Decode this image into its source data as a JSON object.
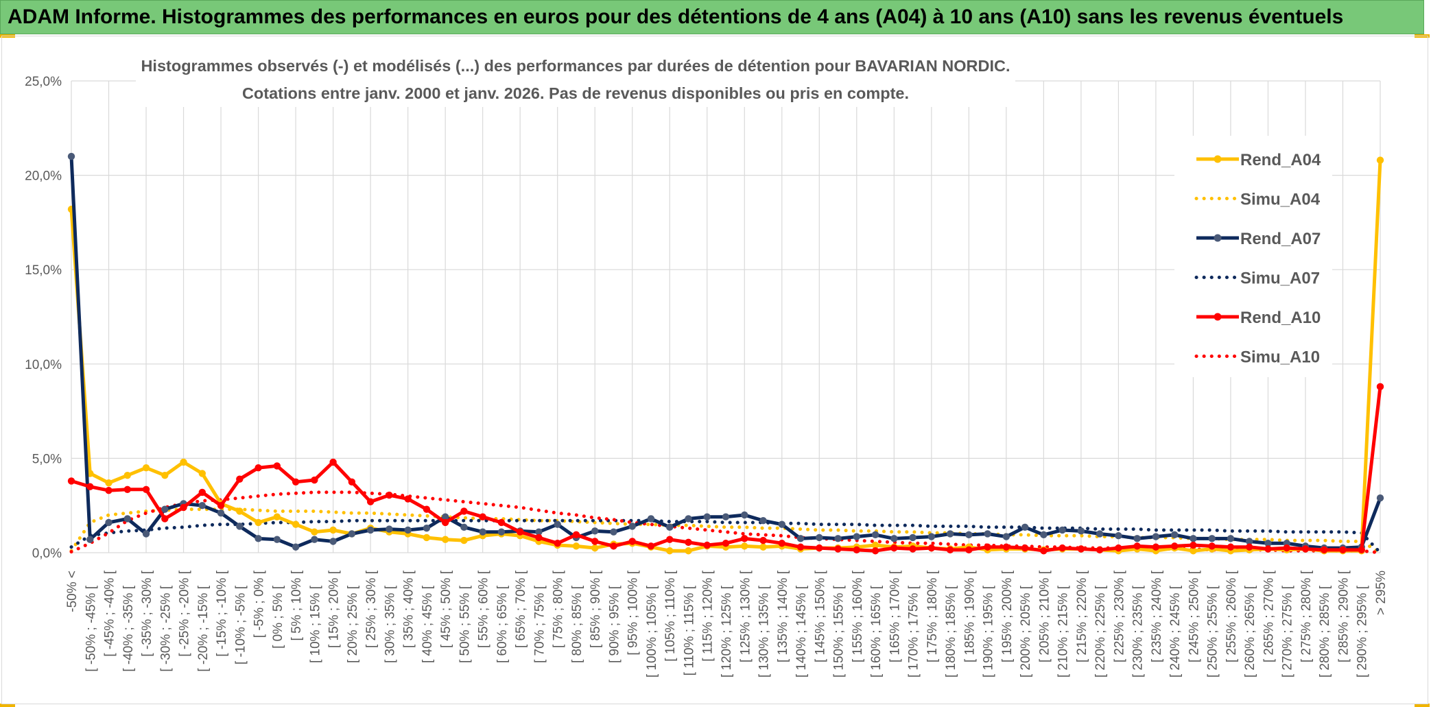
{
  "header": {
    "title": "ADAM Informe. Histogrammes des performances en euros pour des détentions de 4 ans (A04) à 10 ans (A10) sans les revenus éventuels"
  },
  "colors": {
    "banner": "#78c878",
    "yellow": "#ffc000",
    "navy": "#0e2a5c",
    "red": "#ff0000",
    "grid": "#d9d9d9"
  },
  "chart_data": {
    "type": "line",
    "title": "Histogrammes observés (-) et modélisés (...) des performances par durées de détention pour BAVARIAN NORDIC.",
    "subtitle": "Cotations entre janv. 2000 et janv. 2026. Pas de revenus disponibles ou pris en compte.",
    "ylim": [
      0,
      25
    ],
    "yticks": [
      "0,0%",
      "5,0%",
      "10,0%",
      "15,0%",
      "20,0%",
      "25,0%"
    ],
    "legend_position": "right",
    "categories": [
      "-50% <",
      "[ -50% ; -45% [",
      "[ -45% ; -40% [",
      "[ -40% ; -35% [",
      "[ -35% ; -30% [",
      "[ -30% ; -25% [",
      "[ -25% ; -20% [",
      "[ -20% ; -15% [",
      "[ -15% ; -10% [",
      "[ -10% ; -5% [",
      "[ -5% ; 0% [",
      "[ 0% ; 5% [",
      "[ 5% ; 10% [",
      "[ 10% ; 15% [",
      "[ 15% ; 20% [",
      "[ 20% ; 25% [",
      "[ 25% ; 30% [",
      "[ 30% ; 35% [",
      "[ 35% ; 40% [",
      "[ 40% ; 45% [",
      "[ 45% ; 50% [",
      "[ 50% ; 55% [",
      "[ 55% ; 60% [",
      "[ 60% ; 65% [",
      "[ 65% ; 70% [",
      "[ 70% ; 75% [",
      "[ 75% ; 80% [",
      "[ 80% ; 85% [",
      "[ 85% ; 90% [",
      "[ 90% ; 95% [",
      "[ 95% ; 100% [",
      "[ 100% ; 105% [",
      "[ 105% ; 110% [",
      "[ 110% ; 115% [",
      "[ 115% ; 120% [",
      "[ 120% ; 125% [",
      "[ 125% ; 130% [",
      "[ 130% ; 135% [",
      "[ 135% ; 140% [",
      "[ 140% ; 145% [",
      "[ 145% ; 150% [",
      "[ 150% ; 155% [",
      "[ 155% ; 160% [",
      "[ 160% ; 165% [",
      "[ 165% ; 170% [",
      "[ 170% ; 175% [",
      "[ 175% ; 180% [",
      "[ 180% ; 185% [",
      "[ 185% ; 190% [",
      "[ 190% ; 195% [",
      "[ 195% ; 200% [",
      "[ 200% ; 205% [",
      "[ 205% ; 210% [",
      "[ 210% ; 215% [",
      "[ 215% ; 220% [",
      "[ 220% ; 225% [",
      "[ 225% ; 230% [",
      "[ 230% ; 235% [",
      "[ 235% ; 240% [",
      "[ 240% ; 245% [",
      "[ 245% ; 250% [",
      "[ 250% ; 255% [",
      "[ 255% ; 260% [",
      "[ 260% ; 265% [",
      "[ 265% ; 270% [",
      "[ 270% ; 275% [",
      "[ 275% ; 280% [",
      "[ 280% ; 285% [",
      "[ 285% ; 290% [",
      "[ 290% ; 295% [",
      "> 295%"
    ],
    "series": [
      {
        "name": "Rend_A04",
        "style": "solid",
        "color": "#ffc000",
        "values": [
          18.2,
          4.2,
          3.7,
          4.1,
          4.5,
          4.1,
          4.8,
          4.2,
          2.6,
          2.2,
          1.6,
          1.9,
          1.5,
          1.1,
          1.2,
          1.0,
          1.3,
          1.1,
          1.0,
          0.8,
          0.7,
          0.65,
          0.9,
          1.0,
          0.9,
          0.6,
          0.4,
          0.35,
          0.25,
          0.45,
          0.5,
          0.3,
          0.1,
          0.1,
          0.35,
          0.3,
          0.35,
          0.3,
          0.35,
          0.2,
          0.25,
          0.25,
          0.3,
          0.4,
          0.3,
          0.35,
          0.25,
          0.2,
          0.3,
          0.15,
          0.2,
          0.2,
          0.15,
          0.2,
          0.2,
          0.15,
          0.1,
          0.2,
          0.1,
          0.25,
          0.1,
          0.2,
          0.1,
          0.15,
          0.2,
          0.15,
          0.2,
          0.1,
          0.1,
          0.1,
          20.8
        ]
      },
      {
        "name": "Simu_A04",
        "style": "dotted",
        "color": "#ffc000",
        "values": [
          0.1,
          1.6,
          2.0,
          2.1,
          2.2,
          2.25,
          2.3,
          2.3,
          2.3,
          2.3,
          2.25,
          2.2,
          2.2,
          2.2,
          2.15,
          2.1,
          2.1,
          2.05,
          2.0,
          1.95,
          1.9,
          1.85,
          1.8,
          1.8,
          1.75,
          1.7,
          1.7,
          1.65,
          1.6,
          1.55,
          1.5,
          1.5,
          1.45,
          1.45,
          1.4,
          1.35,
          1.35,
          1.3,
          1.3,
          1.25,
          1.2,
          1.2,
          1.15,
          1.15,
          1.1,
          1.1,
          1.05,
          1.05,
          1.0,
          1.0,
          0.95,
          0.95,
          0.9,
          0.9,
          0.9,
          0.85,
          0.85,
          0.8,
          0.8,
          0.8,
          0.75,
          0.75,
          0.7,
          0.7,
          0.7,
          0.65,
          0.65,
          0.65,
          0.6,
          0.6,
          0.0
        ]
      },
      {
        "name": "Rend_A07",
        "style": "solid",
        "color": "#0e2a5c",
        "values": [
          21.0,
          0.7,
          1.6,
          1.8,
          1.0,
          2.3,
          2.6,
          2.5,
          2.1,
          1.4,
          0.75,
          0.7,
          0.3,
          0.7,
          0.6,
          1.0,
          1.2,
          1.25,
          1.2,
          1.3,
          1.9,
          1.35,
          1.1,
          1.1,
          1.15,
          1.1,
          1.5,
          0.8,
          1.15,
          1.1,
          1.4,
          1.8,
          1.35,
          1.8,
          1.9,
          1.9,
          2.0,
          1.7,
          1.5,
          0.75,
          0.8,
          0.75,
          0.85,
          0.95,
          0.75,
          0.8,
          0.85,
          1.0,
          0.95,
          1.0,
          0.85,
          1.35,
          0.95,
          1.2,
          1.15,
          1.0,
          0.9,
          0.75,
          0.85,
          0.95,
          0.75,
          0.75,
          0.75,
          0.6,
          0.5,
          0.5,
          0.35,
          0.25,
          0.25,
          0.3,
          2.9
        ]
      },
      {
        "name": "Simu_A07",
        "style": "dotted",
        "color": "#0e2a5c",
        "values": [
          0.3,
          0.9,
          1.05,
          1.15,
          1.2,
          1.3,
          1.35,
          1.45,
          1.5,
          1.5,
          1.55,
          1.6,
          1.6,
          1.65,
          1.65,
          1.7,
          1.7,
          1.7,
          1.7,
          1.7,
          1.7,
          1.7,
          1.7,
          1.7,
          1.7,
          1.7,
          1.7,
          1.7,
          1.7,
          1.7,
          1.7,
          1.7,
          1.65,
          1.65,
          1.65,
          1.6,
          1.6,
          1.6,
          1.55,
          1.55,
          1.5,
          1.5,
          1.5,
          1.45,
          1.45,
          1.45,
          1.4,
          1.4,
          1.4,
          1.35,
          1.35,
          1.35,
          1.3,
          1.3,
          1.3,
          1.25,
          1.25,
          1.25,
          1.2,
          1.2,
          1.2,
          1.2,
          1.15,
          1.15,
          1.15,
          1.1,
          1.1,
          1.1,
          1.1,
          1.05,
          0.0
        ]
      },
      {
        "name": "Rend_A10",
        "style": "solid",
        "color": "#ff0000",
        "values": [
          3.8,
          3.5,
          3.3,
          3.35,
          3.35,
          1.8,
          2.4,
          3.2,
          2.5,
          3.9,
          4.5,
          4.6,
          3.75,
          3.85,
          4.8,
          3.75,
          2.7,
          3.05,
          2.85,
          2.3,
          1.6,
          2.2,
          1.9,
          1.6,
          1.1,
          0.8,
          0.5,
          0.95,
          0.6,
          0.35,
          0.6,
          0.35,
          0.7,
          0.55,
          0.4,
          0.5,
          0.75,
          0.65,
          0.5,
          0.3,
          0.25,
          0.2,
          0.15,
          0.1,
          0.25,
          0.2,
          0.25,
          0.15,
          0.15,
          0.3,
          0.3,
          0.25,
          0.1,
          0.25,
          0.2,
          0.15,
          0.25,
          0.35,
          0.3,
          0.35,
          0.4,
          0.35,
          0.3,
          0.3,
          0.2,
          0.25,
          0.2,
          0.15,
          0.15,
          0.15,
          8.8
        ]
      },
      {
        "name": "Simu_A10",
        "style": "dotted",
        "color": "#ff0000",
        "values": [
          0.05,
          0.5,
          1.05,
          1.7,
          2.1,
          2.4,
          2.6,
          2.75,
          2.8,
          2.9,
          3.0,
          3.1,
          3.15,
          3.2,
          3.2,
          3.2,
          3.15,
          3.1,
          3.0,
          2.9,
          2.8,
          2.7,
          2.6,
          2.5,
          2.4,
          2.25,
          2.1,
          2.0,
          1.85,
          1.75,
          1.6,
          1.5,
          1.4,
          1.3,
          1.2,
          1.1,
          1.0,
          0.95,
          0.9,
          0.8,
          0.75,
          0.7,
          0.65,
          0.6,
          0.55,
          0.5,
          0.5,
          0.45,
          0.4,
          0.4,
          0.35,
          0.35,
          0.3,
          0.3,
          0.25,
          0.25,
          0.25,
          0.2,
          0.2,
          0.2,
          0.2,
          0.15,
          0.15,
          0.15,
          0.15,
          0.1,
          0.1,
          0.1,
          0.1,
          0.1,
          0.0
        ]
      }
    ]
  }
}
